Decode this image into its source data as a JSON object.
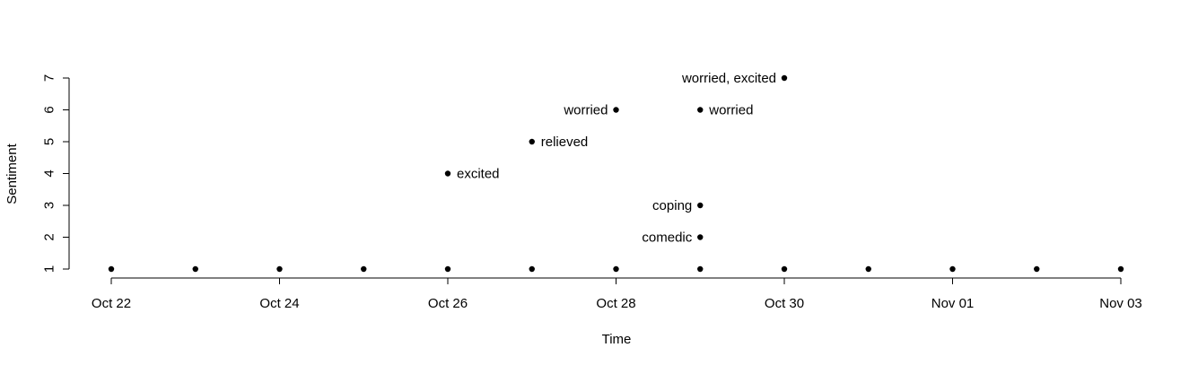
{
  "chart_data": {
    "type": "scatter",
    "title": "",
    "xlabel": "Time",
    "ylabel": "Sentiment",
    "x_type": "date",
    "xlim": [
      "2023-10-22",
      "2023-11-03"
    ],
    "ylim": [
      1,
      7
    ],
    "x_ticks": [
      {
        "date": "2023-10-22",
        "label": "Oct 22"
      },
      {
        "date": "2023-10-24",
        "label": "Oct 24"
      },
      {
        "date": "2023-10-26",
        "label": "Oct 26"
      },
      {
        "date": "2023-10-28",
        "label": "Oct 28"
      },
      {
        "date": "2023-10-30",
        "label": "Oct 30"
      },
      {
        "date": "2023-11-01",
        "label": "Nov 01"
      },
      {
        "date": "2023-11-03",
        "label": "Nov 03"
      }
    ],
    "y_ticks": [
      "1",
      "2",
      "3",
      "4",
      "5",
      "6",
      "7"
    ],
    "grid": false,
    "legend": "none",
    "points": [
      {
        "x": "2023-10-22",
        "y": 1
      },
      {
        "x": "2023-10-23",
        "y": 1
      },
      {
        "x": "2023-10-24",
        "y": 1
      },
      {
        "x": "2023-10-25",
        "y": 1
      },
      {
        "x": "2023-10-26",
        "y": 1
      },
      {
        "x": "2023-10-27",
        "y": 1
      },
      {
        "x": "2023-10-28",
        "y": 1
      },
      {
        "x": "2023-10-29",
        "y": 1
      },
      {
        "x": "2023-10-30",
        "y": 1
      },
      {
        "x": "2023-10-31",
        "y": 1
      },
      {
        "x": "2023-11-01",
        "y": 1
      },
      {
        "x": "2023-11-02",
        "y": 1
      },
      {
        "x": "2023-11-03",
        "y": 1
      },
      {
        "x": "2023-10-26",
        "y": 4,
        "label": "excited",
        "label_side": "right"
      },
      {
        "x": "2023-10-27",
        "y": 5,
        "label": "relieved",
        "label_side": "right"
      },
      {
        "x": "2023-10-28",
        "y": 6,
        "label": "worried",
        "label_side": "left"
      },
      {
        "x": "2023-10-29",
        "y": 6,
        "label": "worried",
        "label_side": "right"
      },
      {
        "x": "2023-10-29",
        "y": 3,
        "label": "coping",
        "label_side": "left"
      },
      {
        "x": "2023-10-29",
        "y": 2,
        "label": "comedic",
        "label_side": "left"
      },
      {
        "x": "2023-10-30",
        "y": 7,
        "label": "worried, excited",
        "label_side": "left"
      }
    ]
  }
}
